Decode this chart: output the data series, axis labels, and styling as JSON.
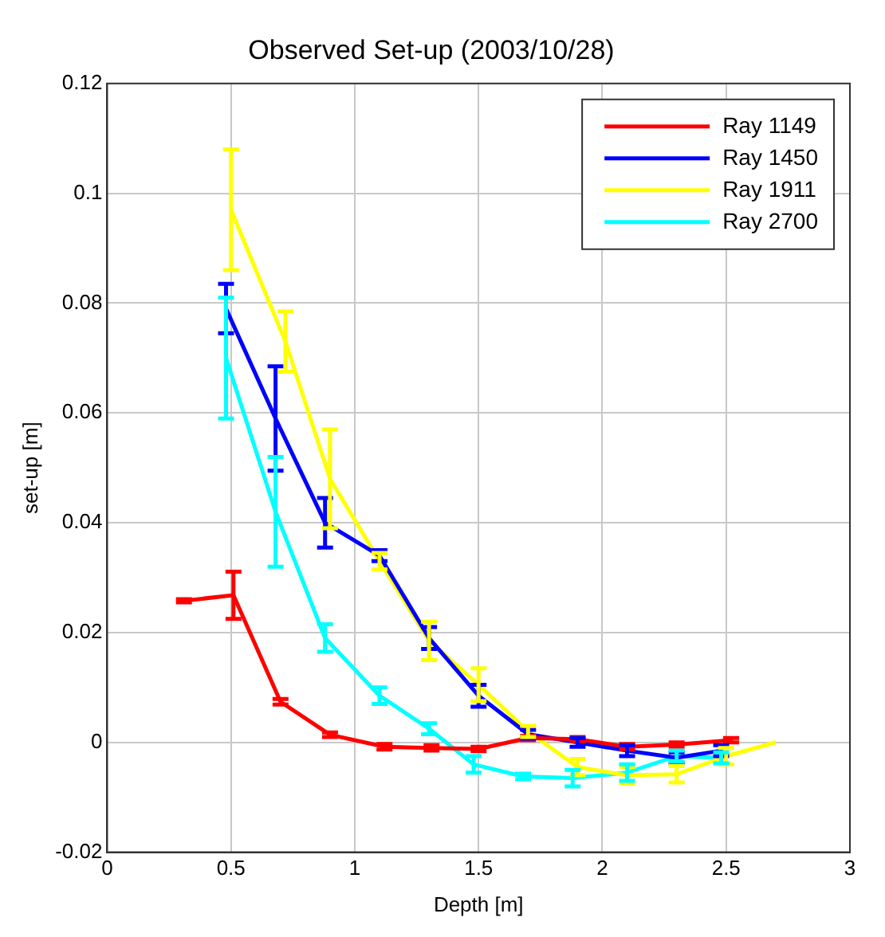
{
  "chart_data": {
    "type": "line",
    "title": "Observed Set-up (2003/10/28)",
    "xlabel": "Depth [m]",
    "ylabel": "set-up [m]",
    "xlim": [
      0,
      3
    ],
    "xticks": [
      0,
      0.5,
      1,
      1.5,
      2,
      2.5,
      3
    ],
    "ylim": [
      -0.02,
      0.12
    ],
    "yticks": [
      -0.02,
      0,
      0.02,
      0.04,
      0.06,
      0.08,
      0.1,
      0.12
    ],
    "grid": true,
    "legend": "top right",
    "line_style": "solid",
    "series": [
      {
        "name": "Ray 1149",
        "color": "#ff0000",
        "x": [
          0.31,
          0.51,
          0.7,
          0.9,
          1.12,
          1.31,
          1.5,
          1.7,
          1.9,
          2.1,
          2.3,
          2.52
        ],
        "values": [
          0.0258,
          0.0268,
          0.0074,
          0.0014,
          -0.0008,
          -0.001,
          -0.0012,
          0.0008,
          0.0006,
          -0.0008,
          -0.0004,
          0.0004
        ],
        "errors": [
          0.0003,
          0.0043,
          0.0005,
          0.0004,
          0.0005,
          0.0005,
          0.0004,
          0.0004,
          0.0004,
          0.0005,
          0.0004,
          0.0004
        ]
      },
      {
        "name": "Ray 1450",
        "color": "#0000ff",
        "x": [
          0.48,
          0.68,
          0.88,
          1.1,
          1.3,
          1.5,
          1.7,
          1.9,
          2.1,
          2.3,
          2.48
        ],
        "values": [
          0.079,
          0.059,
          0.04,
          0.034,
          0.019,
          0.0085,
          0.0015,
          0,
          -0.0015,
          -0.0028,
          -0.0015
        ],
        "errors": [
          0.0045,
          0.0095,
          0.0045,
          0.001,
          0.002,
          0.002,
          0.0008,
          0.0008,
          0.001,
          0.001,
          0.001
        ]
      },
      {
        "name": "Ray 1911",
        "color": "#ffff00",
        "x": [
          0.5,
          0.72,
          0.9,
          1.1,
          1.3,
          1.5,
          1.7,
          1.9,
          2.1,
          2.3,
          2.5,
          2.7
        ],
        "values": [
          0.097,
          0.073,
          0.048,
          0.033,
          0.0185,
          0.0105,
          0.002,
          -0.0045,
          -0.006,
          -0.0058,
          -0.0025,
          0
        ],
        "errors": [
          0.011,
          0.0055,
          0.009,
          0.0015,
          0.0035,
          0.003,
          0.001,
          0.0015,
          0.0015,
          0.0015,
          0.0015,
          null
        ]
      },
      {
        "name": "Ray 2700",
        "color": "#00ffff",
        "x": [
          0.48,
          0.68,
          0.88,
          1.1,
          1.3,
          1.48,
          1.68,
          1.88,
          2.1,
          2.3,
          2.48
        ],
        "values": [
          0.07,
          0.042,
          0.019,
          0.0085,
          0.0025,
          -0.004,
          -0.0062,
          -0.0065,
          -0.0055,
          -0.0025,
          -0.0028
        ],
        "errors": [
          0.011,
          0.01,
          0.0025,
          0.0015,
          0.001,
          0.0015,
          0.0005,
          0.0015,
          0.0015,
          0.001,
          0.001
        ]
      }
    ]
  }
}
